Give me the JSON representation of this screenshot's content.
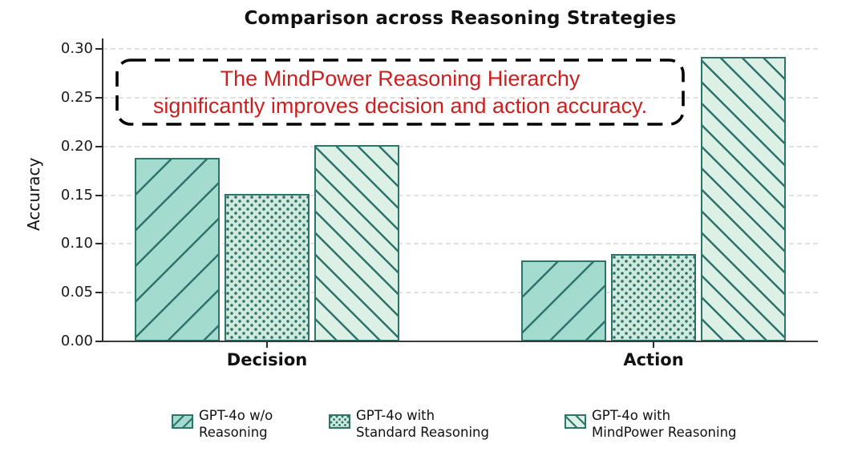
{
  "title": "Comparison across Reasoning Strategies",
  "annotation": {
    "line1": "The MindPower Reasoning Hierarchy",
    "line2": "significantly improves decision and action accuracy.",
    "text_color": "#cc1f1f",
    "box_style": "black-dashed-rounded"
  },
  "chart_data": {
    "type": "bar",
    "title": "Comparison across Reasoning Strategies",
    "categories": [
      "Decision",
      "Action"
    ],
    "series": [
      {
        "name": "GPT-4o w/o Reasoning",
        "legend_label": "GPT-4o w/o\nReasoning",
        "values": [
          0.188,
          0.083
        ],
        "fill": "#a3dccf",
        "hatch": "/"
      },
      {
        "name": "GPT-4o with Standard Reasoning",
        "legend_label": "GPT-4o with\nStandard Reasoning",
        "values": [
          0.151,
          0.09
        ],
        "fill": "#cfe9dc",
        "hatch": "."
      },
      {
        "name": "GPT-4o with MindPower Reasoning",
        "legend_label": "GPT-4o with\nMindPower Reasoning",
        "values": [
          0.201,
          0.292
        ],
        "fill": "#dcf0e5",
        "hatch": "\\"
      }
    ],
    "xlabel": "",
    "ylabel": "Accuracy",
    "ylim": [
      0,
      0.3
    ],
    "yticks": [
      "0.00",
      "0.05",
      "0.10",
      "0.15",
      "0.20",
      "0.25",
      "0.30"
    ],
    "grid": "horizontal-dashed",
    "gridline_color": "#dcdcdc",
    "hatch_color": "#2e736c",
    "legend_position": "bottom"
  }
}
